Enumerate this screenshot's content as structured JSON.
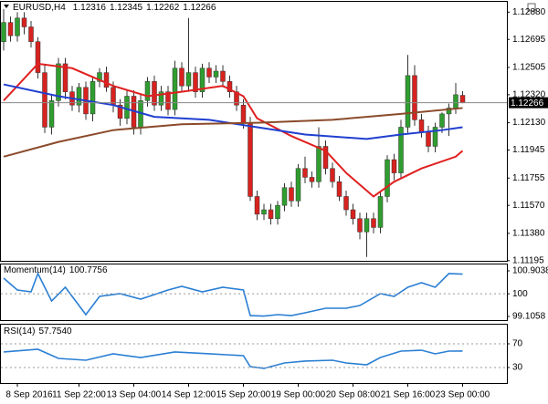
{
  "chart_data": [
    {
      "type": "candlestick",
      "title": "EURUSD,H4",
      "categories": [
        null,
        null,
        "8 Sep 2016",
        null,
        null,
        null,
        null,
        null,
        null,
        null,
        null,
        "11 Sep 22:00",
        null,
        null,
        null,
        null,
        null,
        null,
        null,
        "13 Sep 04:00",
        null,
        null,
        null,
        null,
        null,
        null,
        null,
        "14 Sep 12:00",
        null,
        null,
        null,
        null,
        null,
        null,
        null,
        "15 Sep 20:00",
        null,
        null,
        null,
        null,
        null,
        null,
        null,
        "19 Sep 00:00",
        null,
        null,
        null,
        null,
        null,
        null,
        null,
        "20 Sep 08:00",
        null,
        null,
        null,
        null,
        null,
        null,
        null,
        "21 Sep 16:00",
        null,
        null,
        null,
        null,
        null,
        null,
        null,
        "23 Sep 00:00"
      ],
      "open": [
        1.1268,
        1.1281,
        1.1272,
        1.1284,
        1.1278,
        1.1268,
        1.1247,
        1.121,
        1.1228,
        1.1253,
        1.1234,
        1.1225,
        1.1237,
        1.1219,
        1.1241,
        1.1247,
        1.1237,
        1.1225,
        1.1216,
        1.1231,
        1.121,
        1.1228,
        1.1241,
        1.1225,
        1.1234,
        1.1222,
        1.125,
        1.1238,
        1.1247,
        1.1234,
        1.125,
        1.1244,
        1.1248,
        1.1241,
        1.1234,
        1.1225,
        1.1213,
        1.1163,
        1.1151,
        1.1154,
        1.1148,
        1.1157,
        1.1169,
        1.116,
        1.1182,
        1.1176,
        1.1173,
        1.1197,
        1.1182,
        1.1173,
        1.1163,
        1.1154,
        1.1148,
        1.1139,
        1.1148,
        1.1142,
        1.1163,
        1.1188,
        1.1179,
        1.121,
        1.1245,
        1.1215,
        1.1207,
        1.1197,
        1.121,
        1.1219,
        1.1223,
        1.12316
      ],
      "high": [
        1.129,
        1.1285,
        1.1288,
        1.1288,
        1.1282,
        1.1271,
        1.1253,
        1.1232,
        1.1257,
        1.1257,
        1.1238,
        1.124,
        1.1241,
        1.1244,
        1.125,
        1.1251,
        1.1241,
        1.1229,
        1.1235,
        1.1235,
        1.1232,
        1.1244,
        1.1245,
        1.1238,
        1.1238,
        1.1255,
        1.1254,
        1.1284,
        1.1251,
        1.1253,
        1.1254,
        1.1252,
        1.1252,
        1.1245,
        1.1238,
        1.1229,
        1.1217,
        1.1167,
        1.1158,
        1.1158,
        1.116,
        1.1172,
        1.1173,
        1.1185,
        1.119,
        1.118,
        1.121,
        1.1201,
        1.1186,
        1.1177,
        1.1167,
        1.1158,
        1.1152,
        1.1152,
        1.1152,
        1.1166,
        1.1191,
        1.1192,
        1.1215,
        1.1259,
        1.1252,
        1.1219,
        1.1211,
        1.1213,
        1.122,
        1.1226,
        1.124,
        1.12345
      ],
      "low": [
        1.1262,
        1.1268,
        1.1268,
        1.1273,
        1.1264,
        1.1243,
        1.1206,
        1.1205,
        1.1224,
        1.1229,
        1.1221,
        1.122,
        1.1215,
        1.1214,
        1.1237,
        1.1234,
        1.122,
        1.1211,
        1.1212,
        1.1205,
        1.1205,
        1.1224,
        1.1221,
        1.1221,
        1.1218,
        1.1218,
        1.1234,
        1.1234,
        1.123,
        1.123,
        1.124,
        1.124,
        1.1237,
        1.123,
        1.1221,
        1.1209,
        1.116,
        1.1147,
        1.1147,
        1.1144,
        1.1144,
        1.1153,
        1.1156,
        1.1156,
        1.1172,
        1.1169,
        1.1169,
        1.1178,
        1.1169,
        1.116,
        1.115,
        1.1144,
        1.1134,
        1.1122,
        1.1138,
        1.1138,
        1.1159,
        1.1174,
        1.1175,
        1.1206,
        1.1211,
        1.1203,
        1.1193,
        1.1193,
        1.1206,
        1.1204,
        1.1219,
        1.12262
      ],
      "close": [
        1.1281,
        1.1272,
        1.1284,
        1.1278,
        1.1268,
        1.1247,
        1.121,
        1.1228,
        1.1253,
        1.1234,
        1.1225,
        1.1237,
        1.1219,
        1.1241,
        1.1247,
        1.1237,
        1.1225,
        1.1216,
        1.1231,
        1.121,
        1.1228,
        1.1241,
        1.1225,
        1.1234,
        1.1222,
        1.125,
        1.1238,
        1.1247,
        1.1234,
        1.125,
        1.1244,
        1.1248,
        1.1241,
        1.1234,
        1.1225,
        1.1213,
        1.1163,
        1.1151,
        1.1154,
        1.1148,
        1.1157,
        1.1169,
        1.116,
        1.1182,
        1.1176,
        1.1173,
        1.1197,
        1.1182,
        1.1173,
        1.1163,
        1.1154,
        1.1148,
        1.1139,
        1.1148,
        1.1142,
        1.1163,
        1.1188,
        1.1179,
        1.121,
        1.1245,
        1.1215,
        1.1207,
        1.1197,
        1.121,
        1.1219,
        1.1223,
        1.1232,
        1.12266
      ],
      "up_color": "#2f9e2f",
      "down_color": "#d8221f",
      "overlays": [
        {
          "color": "#e02020",
          "x": [
            0,
            5,
            10,
            16,
            21,
            26,
            32,
            35,
            37,
            42,
            47,
            50,
            54,
            57,
            61,
            66,
            67
          ],
          "values": [
            1.1228,
            1.1253,
            1.125,
            1.1238,
            1.1231,
            1.1234,
            1.1238,
            1.1231,
            1.1216,
            1.1204,
            1.1194,
            1.1179,
            1.1163,
            1.1173,
            1.1182,
            1.119,
            1.1194
          ]
        },
        {
          "color": "#1f3fd0",
          "x": [
            0,
            8,
            16,
            22,
            30,
            37,
            44,
            53,
            58,
            64,
            67
          ],
          "values": [
            1.1239,
            1.1231,
            1.1225,
            1.1217,
            1.1215,
            1.121,
            1.1205,
            1.1202,
            1.1205,
            1.1208,
            1.121
          ]
        },
        {
          "color": "#8b4a2a",
          "x": [
            0,
            8,
            16,
            26,
            37,
            48,
            58,
            67
          ],
          "values": [
            1.119,
            1.12,
            1.1208,
            1.1212,
            1.1213,
            1.1215,
            1.1219,
            1.1223
          ]
        }
      ],
      "last_price": 1.12266,
      "ylim": [
        1.112,
        1.1295
      ],
      "yticks": [
        {
          "value": 1.1288,
          "label": "1.12880"
        },
        {
          "value": 1.12695,
          "label": "1.12695"
        },
        {
          "value": 1.12505,
          "label": "1.12505"
        },
        {
          "value": 1.1232,
          "label": "1.12320"
        },
        {
          "value": 1.1213,
          "label": "1.12130"
        },
        {
          "value": 1.11945,
          "label": "1.11945"
        },
        {
          "value": 1.11755,
          "label": "1.11755"
        },
        {
          "value": 1.1157,
          "label": "1.11570"
        },
        {
          "value": 1.1138,
          "label": "1.11380"
        },
        {
          "value": 1.11195,
          "label": "1.11195"
        }
      ]
    },
    {
      "type": "line",
      "title": "Momentum(14)",
      "series": [
        {
          "color": "#2a7fd4",
          "x": [
            0,
            2,
            4,
            5,
            7,
            9,
            12,
            14,
            17,
            20,
            24,
            26,
            29,
            32,
            35,
            36,
            38,
            40,
            42,
            44,
            47,
            50,
            52,
            55,
            57,
            59,
            61,
            63,
            65,
            67
          ],
          "values": [
            100.616,
            100.149,
            100.077,
            100.796,
            99.717,
            100.257,
            99.178,
            99.897,
            100.005,
            99.789,
            100.149,
            100.292,
            100.077,
            100.257,
            100.149,
            99.14,
            99.12,
            99.178,
            99.14,
            99.25,
            99.429,
            99.429,
            99.537,
            100.005,
            99.897,
            100.257,
            100.436,
            100.257,
            100.796,
            100.7756
          ]
        }
      ],
      "ylim": [
        99.1058,
        100.9038
      ],
      "yticks": [
        100.9038,
        100,
        99.1058
      ],
      "level_lines": [
        100
      ]
    },
    {
      "type": "line",
      "title": "RSI(14)",
      "series": [
        {
          "color": "#2a7fd4",
          "x": [
            0,
            5,
            8,
            12,
            16,
            20,
            25,
            30,
            35,
            36,
            38,
            41,
            44,
            48,
            50,
            53,
            55,
            58,
            61,
            63,
            65,
            67
          ],
          "values": [
            56.2,
            60.8,
            45.4,
            42.3,
            53.1,
            46.9,
            56.2,
            53.1,
            50,
            31.5,
            28.5,
            37.7,
            40.8,
            42.3,
            37.7,
            34.6,
            46.9,
            57.7,
            59.2,
            53.1,
            57.7,
            57.754
          ],
          "value_labels": [
            null,
            null,
            null,
            null,
            null,
            null,
            null,
            null,
            null,
            null,
            null,
            null,
            null,
            null,
            null,
            null,
            null,
            null,
            null,
            null,
            null,
            "57.7540"
          ]
        }
      ],
      "ylim": [
        0,
        100
      ],
      "yticks": [
        70,
        30
      ],
      "level_lines": [
        70,
        30
      ]
    }
  ]
}
